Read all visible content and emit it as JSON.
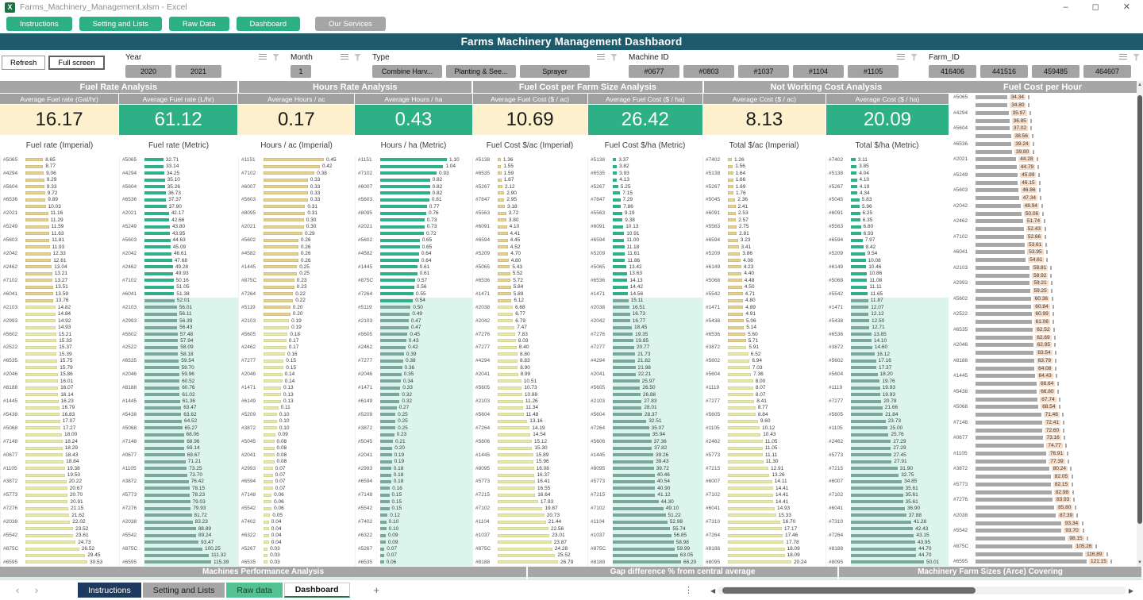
{
  "window": {
    "title": "Farms_Machinery_Management.xlsm - Excel",
    "controls": [
      "minimize",
      "maximize",
      "close"
    ]
  },
  "nav_buttons": [
    {
      "label": "Instructions",
      "variant": "green"
    },
    {
      "label": "Setting and Lists",
      "variant": "green"
    },
    {
      "label": "Raw Data",
      "variant": "green"
    },
    {
      "label": "Dashboard",
      "variant": "green"
    },
    {
      "label": "Our Services",
      "variant": "gray"
    }
  ],
  "dashboard_title": "Farms Machinery Management Dashbaord",
  "view_buttons": [
    {
      "label": "Refresh",
      "active": false
    },
    {
      "label": "Full screen",
      "active": true
    }
  ],
  "slicers": [
    {
      "name": "Year",
      "items": [
        "2020",
        "2021"
      ]
    },
    {
      "name": "Month",
      "items": [
        "1"
      ]
    },
    {
      "name": "Type",
      "items": [
        "Combine Harv...",
        "Planting & See...",
        "Sprayer"
      ]
    },
    {
      "name": "Machine ID",
      "items": [
        "#0677",
        "#0803",
        "#1037",
        "#1104",
        "#1105"
      ]
    },
    {
      "name": "Farm_ID",
      "items": [
        "416406",
        "441516",
        "459485",
        "464607"
      ]
    },
    {
      "name": "Fa",
      "items": [
        ""
      ]
    }
  ],
  "colors": {
    "accent_green": "#2eb086",
    "header_teal": "#1d5a6b",
    "section_gray": "#a6a6a6",
    "kpi_cream": "#fdf1cd",
    "bar_khaki": "#e3d193",
    "bar_green": "#2fb088",
    "bar_dim": "#7aa69d",
    "band_cyan": "#dbf4ec",
    "bar_gray": "#a7a7a7",
    "value_chip_peach": "#f7dcc7"
  },
  "sections": [
    {
      "title": "Fuel Rate Analysis",
      "kpis": [
        {
          "header": "Average Fuel rate (Gal/hr)",
          "value": "16.17",
          "caption": "Fuel rate (Imperial)",
          "variant": "cream"
        },
        {
          "header": "Average Fuel rate (L/hr)",
          "value": "61.12",
          "caption": "Fuel rate (Metric)",
          "variant": "green"
        }
      ]
    },
    {
      "title": "Hours Rate Analysis",
      "kpis": [
        {
          "header": "Average Hours / ac",
          "value": "0.17",
          "caption": "Hours / ac (Imperial)",
          "variant": "cream"
        },
        {
          "header": "Average Hours / ha",
          "value": "0.43",
          "caption": "Hours / ha (Metric)",
          "variant": "green"
        }
      ]
    },
    {
      "title": "Fuel Cost per Farm Size Analysis",
      "kpis": [
        {
          "header": "Average Fuel Cost  ($ / ac)",
          "value": "10.69",
          "caption": "Fuel Cost $/ac (Imperial)",
          "variant": "cream"
        },
        {
          "header": "Average Fuel Cost  ($ / ha)",
          "value": "26.42",
          "caption": "Fuel Cost $/ha (Metric)",
          "variant": "green"
        }
      ]
    },
    {
      "title": "Not Working Cost Analysis",
      "kpis": [
        {
          "header": "Average Cost ($ / ac)",
          "value": "8.13",
          "caption": "Total $/ac (Imperial)",
          "variant": "cream"
        },
        {
          "header": "Average Cost ($ / ha)",
          "value": "20.09",
          "caption": "Total $/ha (Metric)",
          "variant": "green"
        }
      ]
    }
  ],
  "right_section": {
    "title": "Fuel Cost per Hour"
  },
  "chart_data": {
    "type": "bar",
    "orientation": "horizontal",
    "note": "Category labels are shown on every other bar; values labeled at bar ends.",
    "label_sets": {
      "fuel": [
        "#5065",
        "#4294",
        "#5604",
        "#6536",
        "#2021",
        "#5249",
        "#5603",
        "#2042",
        "#2462",
        "#7102",
        "#6041",
        "#2103",
        "#2993",
        "#5602",
        "#2522",
        "#6535",
        "#2046",
        "#8188",
        "#1445",
        "#5438",
        "#5068",
        "#7148",
        "#0677",
        "#1105",
        "#3872",
        "#5773",
        "#7276",
        "#2038",
        "#5542",
        "#875C",
        "#6595"
      ],
      "hours": [
        "#1151",
        "#7102",
        "#6007",
        "#5603",
        "#8095",
        "#2021",
        "#5602",
        "#4582",
        "#1445",
        "#875C",
        "#7264",
        "#5119",
        "#2103",
        "#5605",
        "#2462",
        "#7277",
        "#2046",
        "#1471",
        "#6149",
        "#5209",
        "#3872",
        "#5045",
        "#2041",
        "#2993",
        "#6594",
        "#7148",
        "#5542",
        "#7402",
        "#6322",
        "#5267",
        "#6535"
      ],
      "fuelcost": [
        "#5138",
        "#6535",
        "#5267",
        "#7847",
        "#5563",
        "#6091",
        "#6594",
        "#5209",
        "#5065",
        "#6536",
        "#1471",
        "#2038",
        "#2042",
        "#7276",
        "#7277",
        "#4294",
        "#2041",
        "#5605",
        "#2103",
        "#5604",
        "#7264",
        "#5606",
        "#1445",
        "#8095",
        "#5773",
        "#7215",
        "#7102",
        "#1104",
        "#1037",
        "#875C",
        "#8188"
      ],
      "notwork": [
        "#7402",
        "#5138",
        "#5267",
        "#5045",
        "#6091",
        "#5563",
        "#6594",
        "#5209",
        "#6149",
        "#5068",
        "#5542",
        "#1471",
        "#5438",
        "#6536",
        "#3872",
        "#5602",
        "#5604",
        "#1119",
        "#7277",
        "#5605",
        "#1105",
        "#2462",
        "#5773",
        "#7215",
        "#6007",
        "#7102",
        "#6041",
        "#7310",
        "#7264",
        "#8188",
        "#8095"
      ]
    },
    "charts": [
      {
        "name": "fuel-rate-gal-hr",
        "title": "Average Fuel rate (Gal/hr)",
        "label_set": "fuel",
        "style": "khaki",
        "split_index": 22,
        "max": 30.53,
        "values": [
          8.65,
          8.77,
          9.06,
          9.29,
          9.33,
          9.72,
          9.89,
          10.03,
          11.16,
          11.29,
          11.59,
          11.63,
          11.81,
          11.93,
          12.33,
          12.61,
          13.04,
          13.21,
          13.27,
          13.51,
          13.59,
          13.76,
          14.82,
          14.84,
          14.92,
          14.93,
          15.21,
          15.33,
          15.37,
          15.39,
          15.75,
          15.79,
          15.86,
          16.01,
          16.07,
          16.14,
          16.23,
          16.79,
          16.83,
          17.07,
          17.27,
          18.0,
          18.24,
          18.29,
          18.43,
          18.84,
          19.38,
          19.5,
          20.22,
          20.67,
          20.7,
          20.91,
          21.15,
          21.62,
          22.02,
          23.52,
          23.61,
          24.73,
          26.52,
          29.45,
          30.53
        ]
      },
      {
        "name": "fuel-rate-l-hr",
        "title": "Average Fuel rate (L/hr)",
        "label_set": "fuel",
        "style": "green",
        "split_index": 21,
        "band_start": 21,
        "max": 115.39,
        "values": [
          32.71,
          33.14,
          34.25,
          35.1,
          35.26,
          36.73,
          37.37,
          37.9,
          42.17,
          42.66,
          43.8,
          43.95,
          44.63,
          45.09,
          46.61,
          47.68,
          49.28,
          49.93,
          50.16,
          51.05,
          51.38,
          52.01,
          56.01,
          56.11,
          56.39,
          56.43,
          57.48,
          57.94,
          58.09,
          58.18,
          59.54,
          59.7,
          59.96,
          60.52,
          60.76,
          61.02,
          61.36,
          63.47,
          63.62,
          64.52,
          65.27,
          68.06,
          68.96,
          69.14,
          69.67,
          71.21,
          73.25,
          73.7,
          76.42,
          78.15,
          78.23,
          79.03,
          79.93,
          81.72,
          83.23,
          88.89,
          89.24,
          93.47,
          100.25,
          111.32,
          115.39
        ]
      },
      {
        "name": "hours-per-ac",
        "title": "Average Hours / ac",
        "label_set": "hours",
        "style": "khaki",
        "split_index": 24,
        "max": 0.45,
        "values": [
          0.45,
          0.42,
          0.38,
          0.33,
          0.33,
          0.33,
          0.33,
          0.31,
          0.31,
          0.3,
          0.3,
          0.29,
          0.26,
          0.26,
          0.26,
          0.26,
          0.25,
          0.25,
          0.23,
          0.23,
          0.22,
          0.22,
          0.2,
          0.2,
          0.19,
          0.19,
          0.18,
          0.17,
          0.17,
          0.16,
          0.15,
          0.15,
          0.14,
          0.14,
          0.13,
          0.13,
          0.13,
          0.11,
          0.1,
          0.1,
          0.1,
          0.09,
          0.08,
          0.08,
          0.08,
          0.08,
          0.07,
          0.07,
          0.07,
          0.07,
          0.06,
          0.06,
          0.06,
          0.05,
          0.04,
          0.04,
          0.04,
          0.04,
          0.03,
          0.03,
          0.03
        ]
      },
      {
        "name": "hours-per-ha",
        "title": "Average Hours / ha",
        "label_set": "hours",
        "style": "green",
        "split_index": 22,
        "band_start": 21,
        "max": 1.1,
        "values": [
          1.1,
          1.04,
          0.93,
          0.82,
          0.82,
          0.82,
          0.81,
          0.77,
          0.76,
          0.73,
          0.73,
          0.72,
          0.65,
          0.65,
          0.64,
          0.64,
          0.61,
          0.61,
          0.57,
          0.56,
          0.55,
          0.54,
          0.5,
          0.49,
          0.47,
          0.47,
          0.45,
          0.43,
          0.42,
          0.39,
          0.38,
          0.36,
          0.35,
          0.34,
          0.33,
          0.32,
          0.32,
          0.27,
          0.25,
          0.25,
          0.25,
          0.23,
          0.21,
          0.2,
          0.19,
          0.19,
          0.18,
          0.18,
          0.18,
          0.16,
          0.15,
          0.15,
          0.15,
          0.12,
          0.1,
          0.1,
          0.09,
          0.09,
          0.07,
          0.07,
          0.06
        ]
      },
      {
        "name": "fuel-cost-per-ac",
        "title": "Average Fuel Cost ($/ac)",
        "label_set": "fuelcost",
        "style": "khaki",
        "split_index": 22,
        "max": 26.79,
        "values": [
          1.36,
          1.55,
          1.59,
          1.67,
          2.12,
          2.9,
          2.95,
          3.18,
          3.72,
          3.8,
          4.1,
          4.41,
          4.45,
          4.52,
          4.7,
          4.8,
          5.43,
          5.52,
          5.72,
          5.84,
          5.89,
          6.12,
          6.68,
          6.77,
          6.79,
          7.47,
          7.83,
          8.03,
          8.4,
          8.8,
          8.83,
          8.9,
          8.99,
          10.51,
          10.73,
          10.88,
          11.26,
          11.34,
          11.48,
          13.16,
          14.19,
          14.54,
          15.12,
          15.3,
          15.89,
          15.96,
          16.08,
          16.37,
          16.41,
          16.55,
          16.64,
          17.93,
          19.87,
          20.73,
          21.44,
          22.56,
          23.01,
          23.87,
          24.28,
          25.52,
          26.79
        ]
      },
      {
        "name": "fuel-cost-per-ha",
        "title": "Average Fuel Cost ($/ha)",
        "label_set": "fuelcost",
        "style": "green",
        "split_index": 21,
        "band_start": 21,
        "max": 66.2,
        "values": [
          3.37,
          3.82,
          3.93,
          4.13,
          5.25,
          7.15,
          7.29,
          7.86,
          9.19,
          9.38,
          10.13,
          10.91,
          11.0,
          11.18,
          11.61,
          11.86,
          13.42,
          13.63,
          14.13,
          14.42,
          14.56,
          15.11,
          16.51,
          16.73,
          16.77,
          18.45,
          19.35,
          19.85,
          20.77,
          21.73,
          21.82,
          21.98,
          22.21,
          25.97,
          26.5,
          26.88,
          27.83,
          28.01,
          28.37,
          32.51,
          35.07,
          35.94,
          37.36,
          37.82,
          39.26,
          39.43,
          39.72,
          40.46,
          40.54,
          40.9,
          41.12,
          44.3,
          49.1,
          51.22,
          52.98,
          55.74,
          56.85,
          58.98,
          59.99,
          63.05,
          66.2
        ]
      },
      {
        "name": "not-working-cost-per-ac",
        "title": "Average Cost ($/ac)",
        "label_set": "notwork",
        "style": "khaki",
        "split_index": 28,
        "max": 20.24,
        "values": [
          1.26,
          1.56,
          1.64,
          1.66,
          1.69,
          1.76,
          2.36,
          2.41,
          2.53,
          2.57,
          2.75,
          2.81,
          3.23,
          3.41,
          3.86,
          4.08,
          4.23,
          4.4,
          4.48,
          4.5,
          4.71,
          4.8,
          4.89,
          4.91,
          5.06,
          5.14,
          5.6,
          5.71,
          5.91,
          6.52,
          6.94,
          7.03,
          7.36,
          8.0,
          8.07,
          8.07,
          8.41,
          8.77,
          8.84,
          9.6,
          10.12,
          10.43,
          11.05,
          11.05,
          11.11,
          11.3,
          12.91,
          13.26,
          14.11,
          14.41,
          14.41,
          14.41,
          14.93,
          15.33,
          16.7,
          17.17,
          17.46,
          17.78,
          18.09,
          18.09,
          20.24
        ]
      },
      {
        "name": "not-working-cost-per-ha",
        "title": "Average Cost ($/ha)",
        "label_set": "notwork",
        "style": "green",
        "split_index": 21,
        "band_start": 21,
        "max": 50.01,
        "values": [
          3.11,
          3.85,
          4.04,
          4.1,
          4.19,
          4.34,
          5.83,
          5.96,
          6.25,
          6.35,
          6.8,
          6.93,
          7.97,
          8.42,
          9.54,
          10.08,
          10.46,
          10.86,
          11.08,
          11.11,
          11.65,
          11.87,
          12.07,
          12.12,
          12.5,
          12.71,
          13.85,
          14.1,
          14.6,
          16.12,
          17.16,
          17.37,
          18.2,
          19.76,
          19.93,
          19.93,
          20.78,
          21.66,
          21.84,
          23.73,
          25.0,
          25.76,
          27.29,
          27.29,
          27.45,
          27.91,
          31.9,
          32.75,
          34.85,
          35.61,
          35.61,
          35.61,
          36.9,
          37.88,
          41.28,
          42.43,
          43.15,
          43.95,
          44.7,
          44.7,
          50.01
        ]
      },
      {
        "name": "fuel-cost-per-hour",
        "title": "Fuel Cost per Hour",
        "label_set": "fuel",
        "style": "gray",
        "chip": true,
        "max": 121.15,
        "values": [
          34.34,
          34.8,
          35.97,
          36.85,
          37.02,
          38.56,
          39.24,
          39.8,
          44.28,
          44.79,
          45.99,
          46.15,
          46.86,
          47.34,
          48.94,
          50.06,
          51.74,
          52.43,
          52.66,
          53.61,
          53.95,
          54.61,
          58.81,
          58.92,
          59.21,
          59.25,
          60.36,
          60.84,
          60.99,
          61.08,
          62.52,
          62.69,
          62.95,
          63.54,
          63.79,
          64.08,
          64.43,
          66.64,
          66.8,
          67.74,
          68.54,
          71.46,
          72.41,
          72.6,
          73.16,
          74.77,
          76.91,
          77.39,
          80.24,
          82.05,
          82.15,
          82.98,
          83.93,
          85.8,
          87.39,
          93.34,
          93.7,
          98.15,
          105.26,
          116.89,
          121.15
        ]
      }
    ]
  },
  "footer_labels": [
    "Machines Performance Analysis",
    "Gap difference % from central average",
    "Machinery Farm Sizes (Arce) Covering"
  ],
  "sheet_tabs": [
    {
      "label": "Instructions",
      "variant": "navy"
    },
    {
      "label": "Setting and Lists",
      "variant": "gray"
    },
    {
      "label": "Raw data",
      "variant": "green"
    },
    {
      "label": "Dashboard",
      "variant": "active"
    }
  ],
  "tab_add_label": "+"
}
